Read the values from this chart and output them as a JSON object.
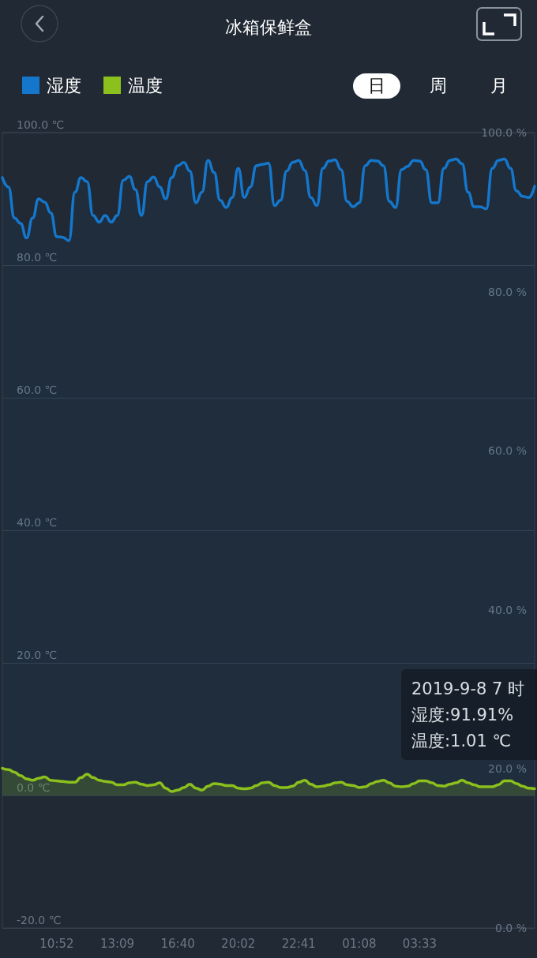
{
  "chart_data": {
    "type": "area",
    "title": "冰箱保鲜盒",
    "categories": [
      null,
      null,
      null,
      null,
      null,
      null,
      null,
      null,
      null,
      "10:52",
      null,
      null,
      null,
      null,
      null,
      null,
      null,
      null,
      null,
      "13:09",
      null,
      null,
      null,
      null,
      null,
      null,
      null,
      null,
      null,
      "16:40",
      null,
      null,
      null,
      null,
      null,
      null,
      null,
      null,
      null,
      "20:02",
      null,
      null,
      null,
      null,
      null,
      null,
      null,
      null,
      null,
      "22:41",
      null,
      null,
      null,
      null,
      null,
      null,
      null,
      null,
      null,
      "01:08",
      null,
      null,
      null,
      null,
      null,
      null,
      null,
      null,
      null,
      "03:33",
      null,
      null,
      null,
      null,
      null,
      null,
      null,
      null,
      null,
      null,
      null,
      null,
      null,
      null,
      null,
      null,
      null,
      null,
      null
    ],
    "series": [
      {
        "name": "湿度",
        "color": "#1577cc",
        "values": [
          93.2,
          91.8,
          87.1,
          86.3,
          84.1,
          87.1,
          90.0,
          89.5,
          87.9,
          84.3,
          84.2,
          83.7,
          91.0,
          93.2,
          92.6,
          87.5,
          86.5,
          87.5,
          86.5,
          87.5,
          92.8,
          93.4,
          91.4,
          87.5,
          92.6,
          93.3,
          91.8,
          90.0,
          93.2,
          95.0,
          95.5,
          94.2,
          89.4,
          91.0,
          95.8,
          94.0,
          89.8,
          88.7,
          90.2,
          94.6,
          90.2,
          91.8,
          95.0,
          95.2,
          95.4,
          89.0,
          89.8,
          94.2,
          95.5,
          95.8,
          94.3,
          90.2,
          89.0,
          94.6,
          95.7,
          95.9,
          94.4,
          89.6,
          88.8,
          89.4,
          95.0,
          95.8,
          95.7,
          95.0,
          89.6,
          88.7,
          94.4,
          94.9,
          95.8,
          95.7,
          94.4,
          89.4,
          89.4,
          94.6,
          95.8,
          96.0,
          95.3,
          91.0,
          88.8,
          88.8,
          88.5,
          94.6,
          95.8,
          96.0,
          94.6,
          91.2,
          90.4,
          90.2,
          91.91
        ]
      },
      {
        "name": "温度",
        "color": "#8cc01c",
        "values": [
          4.1,
          3.9,
          3.5,
          3.0,
          2.5,
          2.3,
          2.6,
          2.8,
          2.3,
          2.2,
          2.1,
          2.0,
          2.0,
          2.7,
          3.2,
          2.7,
          2.3,
          2.1,
          2.0,
          1.6,
          1.6,
          1.9,
          2.0,
          1.7,
          1.5,
          1.6,
          1.9,
          1.1,
          0.6,
          0.8,
          1.2,
          1.7,
          1.1,
          0.8,
          1.4,
          1.8,
          1.7,
          1.5,
          1.5,
          1.1,
          1.0,
          1.1,
          1.5,
          1.9,
          2.0,
          1.5,
          1.2,
          1.2,
          1.4,
          2.0,
          2.3,
          1.7,
          1.3,
          1.4,
          1.6,
          1.9,
          2.0,
          1.6,
          1.5,
          1.2,
          1.3,
          1.8,
          2.1,
          2.3,
          1.9,
          1.4,
          1.3,
          1.4,
          1.8,
          2.2,
          2.2,
          1.9,
          1.5,
          1.4,
          1.7,
          1.9,
          2.3,
          1.9,
          1.6,
          1.3,
          1.3,
          1.3,
          1.6,
          2.2,
          2.2,
          1.8,
          1.4,
          1.1,
          1.01
        ]
      }
    ],
    "ylim": [
      -20,
      100
    ],
    "yticks": [
      {
        "value": -20,
        "label": "-20.0 ℃"
      },
      {
        "value": 0,
        "label": "0.0 ℃"
      },
      {
        "value": 20,
        "label": "20.0 ℃"
      },
      {
        "value": 40,
        "label": "40.0 ℃"
      },
      {
        "value": 60,
        "label": "60.0 ℃"
      },
      {
        "value": 80,
        "label": "80.0 ℃"
      },
      {
        "value": 100,
        "label": "100.0 ℃"
      }
    ],
    "y2lim": [
      0,
      100
    ],
    "y2ticks": [
      {
        "value": 0,
        "label": "0.0 %"
      },
      {
        "value": 20,
        "label": "20.0 %"
      },
      {
        "value": 40,
        "label": "40.0 %"
      },
      {
        "value": 60,
        "label": "60.0 %"
      },
      {
        "value": 80,
        "label": "80.0 %"
      },
      {
        "value": 100,
        "label": "100.0 %"
      }
    ],
    "grid": "y",
    "legend": "top left",
    "annotations": [
      "日",
      "周",
      "月",
      "2019-9-8 7 时",
      "湿度:91.91%",
      "温度:1.01 ℃"
    ]
  }
}
